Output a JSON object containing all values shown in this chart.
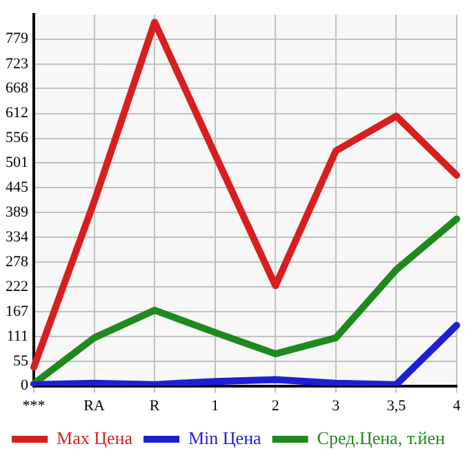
{
  "chart_data": {
    "type": "line",
    "categories": [
      "***",
      "RA",
      "R",
      "1",
      "2",
      "3",
      "3,5",
      "4"
    ],
    "series": [
      {
        "name": "Max Цена",
        "color": "#d81e1e",
        "values": [
          42,
          414,
          817,
          520,
          225,
          528,
          606,
          473
        ]
      },
      {
        "name": "Min Цена",
        "color": "#1e1ed8",
        "values": [
          3,
          6,
          3,
          10,
          14,
          6,
          3,
          136
        ]
      },
      {
        "name": "Сред.Цена, т.йен",
        "color": "#1e8a1e",
        "values": [
          5,
          108,
          170,
          120,
          72,
          108,
          261,
          375
        ]
      }
    ],
    "ylim": [
      0,
      834
    ],
    "yticks": [
      0,
      55,
      111,
      167,
      222,
      278,
      334,
      389,
      445,
      501,
      556,
      612,
      668,
      723,
      779
    ],
    "grid": true,
    "legend": "bottom",
    "marker": "none",
    "line_style": "solid"
  }
}
